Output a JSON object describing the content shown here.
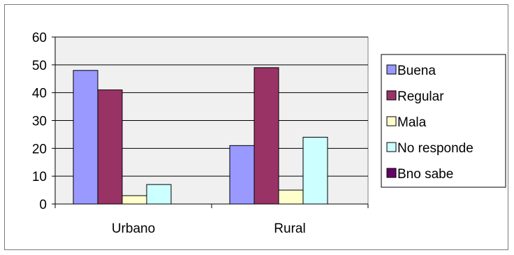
{
  "chart_data": {
    "type": "bar",
    "categories": [
      "Urbano",
      "Rural"
    ],
    "series": [
      {
        "name": "Buena",
        "color": "#9999ff",
        "values": [
          48,
          21
        ]
      },
      {
        "name": "Regular",
        "color": "#993366",
        "values": [
          41,
          49
        ]
      },
      {
        "name": "Mala",
        "color": "#ffffcc",
        "values": [
          3,
          5
        ]
      },
      {
        "name": "No responde",
        "color": "#ccffff",
        "values": [
          7,
          24
        ]
      },
      {
        "name": "Bno sabe",
        "color": "#660066",
        "values": [
          0,
          0
        ]
      }
    ],
    "ylim": [
      0,
      60
    ],
    "yticks": [
      0,
      10,
      20,
      30,
      40,
      50,
      60
    ],
    "grid": true,
    "legend": "right",
    "plot_background": "#f0f0f0"
  }
}
